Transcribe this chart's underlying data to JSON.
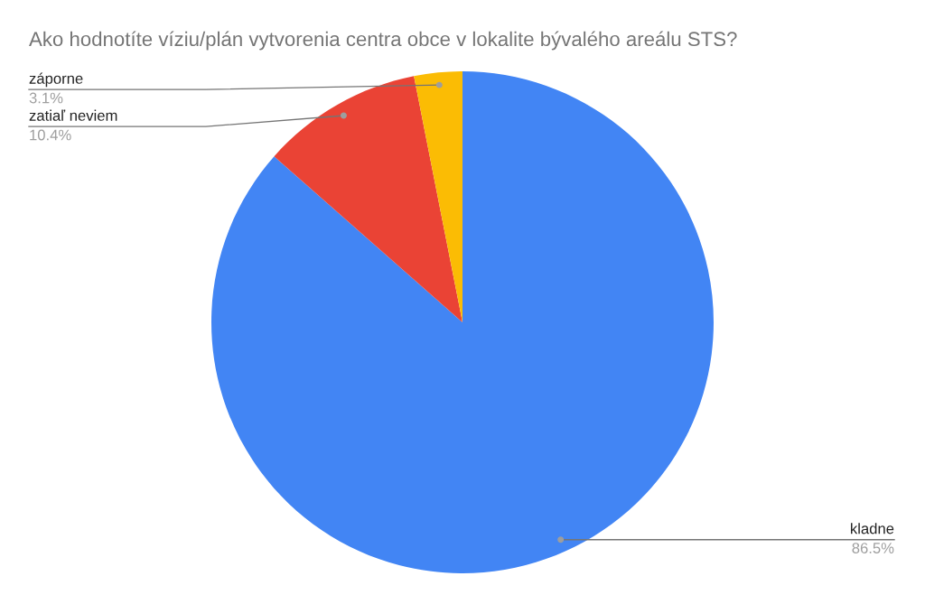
{
  "chart_data": {
    "type": "pie",
    "title": "Ako hodnotíte víziu/plán vytvorenia centra obce v lokalite bývalého areálu STS?",
    "categories": [
      "kladne",
      "zatiaľ neviem",
      "záporne"
    ],
    "values": [
      86.5,
      10.4,
      3.1
    ],
    "value_labels": [
      "86.5%",
      "10.4%",
      "3.1%"
    ],
    "colors": [
      "#4285f4",
      "#ea4335",
      "#fbbc04"
    ],
    "legend": false
  }
}
